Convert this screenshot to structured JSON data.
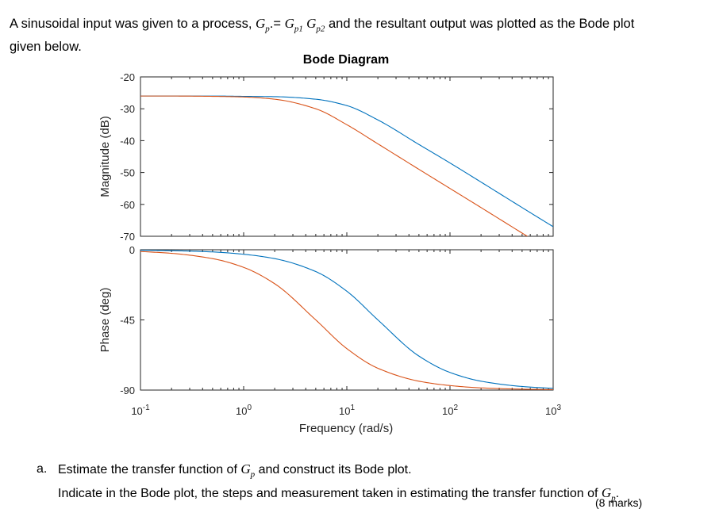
{
  "intro": {
    "text_before": "A sinusoidal input was given to a process, ",
    "gp_main": "G",
    "gp_sub": "p",
    "equals": ".= ",
    "gp1_main": "G",
    "gp1_sub": "p1",
    "gp2_main": " G",
    "gp2_sub": "p2",
    "text_after": " and the resultant output was plotted as the Bode plot",
    "line2": "given below."
  },
  "question": {
    "letter": "a.",
    "line1": "Estimate the transfer function of ",
    "line1_gp_main": "G",
    "line1_gp_sub": "p",
    "line1_end": " and construct its Bode plot.",
    "line2": "Indicate in the Bode plot, the steps and measurement taken in estimating the transfer function of ",
    "line2_gp_main": "G",
    "line2_gp_sub": "p",
    "line2_end": ".",
    "marks": "(8 marks)"
  },
  "chart_data": {
    "type": "line",
    "title": "Bode Diagram",
    "xlabel": "Frequency  (rad/s)",
    "x_scale": "log",
    "xlim": [
      0.1,
      1000
    ],
    "x_ticks": [
      {
        "base": "10",
        "exp": "-1"
      },
      {
        "base": "10",
        "exp": "0"
      },
      {
        "base": "10",
        "exp": "1"
      },
      {
        "base": "10",
        "exp": "2"
      },
      {
        "base": "10",
        "exp": "3"
      }
    ],
    "x": [
      0.1,
      0.2,
      0.5,
      1,
      2,
      5,
      10,
      20,
      50,
      100,
      200,
      500,
      1000
    ],
    "grid": false,
    "panels": [
      {
        "ylabel": "Magnitude (dB)",
        "ylim": [
          -70,
          -20
        ],
        "yticks": [
          "-20",
          "-30",
          "-40",
          "-50",
          "-60",
          "-70"
        ],
        "series": [
          {
            "color": "#0072BD",
            "values": [
              -26,
              -26,
              -26,
              -26.1,
              -26.2,
              -27,
              -29,
              -33.5,
              -41.2,
              -47,
              -53,
              -61,
              -67
            ]
          },
          {
            "color": "#D95319",
            "values": [
              -26,
              -26,
              -26.1,
              -26.3,
              -27,
              -30,
              -35,
              -41,
              -49,
              -55,
              -61,
              -69,
              -75
            ]
          }
        ]
      },
      {
        "ylabel": "Phase (deg)",
        "ylim": [
          -90,
          0
        ],
        "yticks": [
          "0",
          "-45",
          "-90"
        ],
        "series": [
          {
            "color": "#0072BD",
            "values": [
              -0.3,
              -0.6,
              -1.4,
              -2.9,
              -5.7,
              -14,
              -26.6,
              -45,
              -68.2,
              -78.7,
              -84.3,
              -87.7,
              -88.9
            ]
          },
          {
            "color": "#D95319",
            "values": [
              -1.1,
              -2.3,
              -5.7,
              -11.3,
              -21.8,
              -45,
              -63.4,
              -76,
              -84.3,
              -87.1,
              -88.6,
              -89.4,
              -89.7
            ]
          }
        ]
      }
    ]
  }
}
